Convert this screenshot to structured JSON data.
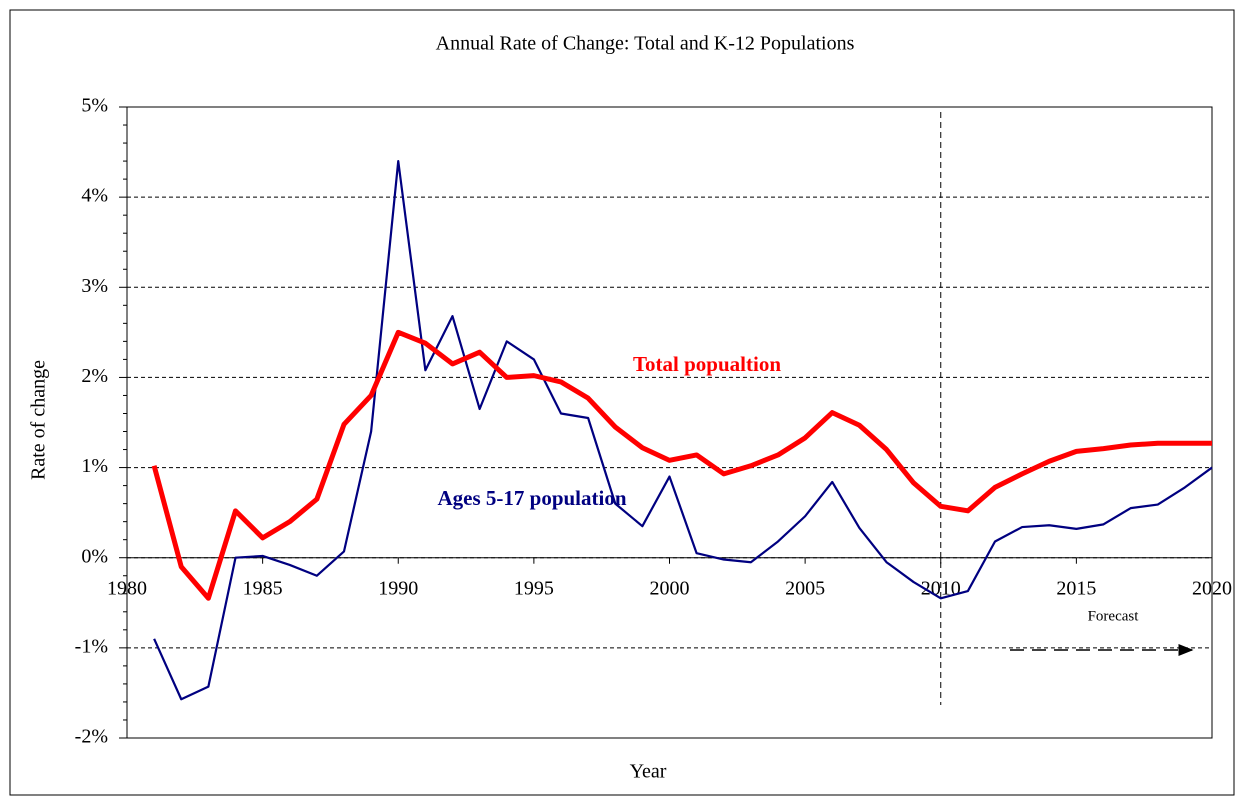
{
  "chart_data": {
    "type": "line",
    "title": "Annual Rate of Change: Total and K-12 Populations",
    "xlabel": "Year",
    "ylabel": "Rate of change",
    "x": [
      1981,
      1982,
      1983,
      1984,
      1985,
      1986,
      1987,
      1988,
      1989,
      1990,
      1991,
      1992,
      1993,
      1994,
      1995,
      1996,
      1997,
      1998,
      1999,
      2000,
      2001,
      2002,
      2003,
      2004,
      2005,
      2006,
      2007,
      2008,
      2009,
      2010,
      2011,
      2012,
      2013,
      2014,
      2015,
      2016,
      2017,
      2018,
      2019,
      2020
    ],
    "series": [
      {
        "name": "Total popualtion",
        "color": "#ff0000",
        "values": [
          1.02,
          -0.1,
          -0.45,
          0.52,
          0.22,
          0.4,
          0.65,
          1.48,
          1.8,
          2.5,
          2.38,
          2.15,
          2.28,
          2.0,
          2.02,
          1.95,
          1.77,
          1.45,
          1.22,
          1.08,
          1.14,
          0.93,
          1.02,
          1.14,
          1.33,
          1.61,
          1.47,
          1.2,
          0.83,
          0.57,
          0.52,
          0.78,
          0.93,
          1.07,
          1.18,
          1.21,
          1.25,
          1.27,
          1.27,
          1.27
        ]
      },
      {
        "name": "Ages 5-17 population",
        "color": "#000080",
        "values": [
          -0.9,
          -1.57,
          -1.43,
          0.0,
          0.02,
          -0.08,
          -0.2,
          0.07,
          1.4,
          4.4,
          2.08,
          2.68,
          1.65,
          2.4,
          2.2,
          1.6,
          1.55,
          0.6,
          0.35,
          0.9,
          0.05,
          -0.02,
          -0.05,
          0.18,
          0.46,
          0.84,
          0.33,
          -0.05,
          -0.27,
          -0.45,
          -0.37,
          0.18,
          0.34,
          0.36,
          0.32,
          0.37,
          0.55,
          0.59,
          0.78,
          1.0
        ]
      }
    ],
    "forecast_label": "Forecast",
    "forecast_start": 2010,
    "xlim": [
      1980,
      2020
    ],
    "xticks": [
      1980,
      1985,
      1990,
      1995,
      2000,
      2005,
      2010,
      2015,
      2020
    ],
    "ylim": [
      -2,
      5
    ],
    "yticks": [
      {
        "value": -2,
        "label": "-2%"
      },
      {
        "value": -1,
        "label": "-1%"
      },
      {
        "value": 0,
        "label": "0%"
      },
      {
        "value": 1,
        "label": "1%"
      },
      {
        "value": 2,
        "label": "2%"
      },
      {
        "value": 3,
        "label": "3%"
      },
      {
        "value": 4,
        "label": "4%"
      },
      {
        "value": 5,
        "label": "5%"
      }
    ],
    "grid": true
  }
}
